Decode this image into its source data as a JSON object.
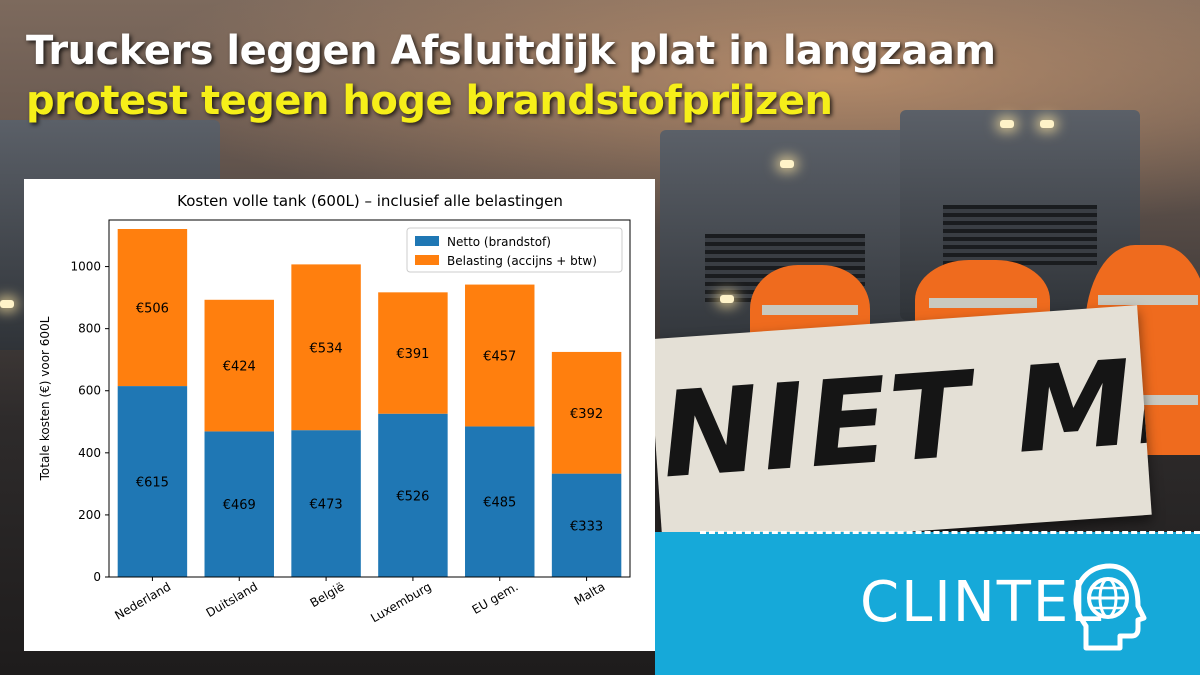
{
  "headline": {
    "line1": "Truckers leggen Afsluitdijk plat in langzaam",
    "line2": "protest tegen hoge brandstofprijzen"
  },
  "banner": {
    "text": "NIET MEER!"
  },
  "brand": {
    "name": "CLINTEL",
    "icon": "globe-head-icon",
    "color": "#16a9d9"
  },
  "chart_data": {
    "type": "bar",
    "stacked": true,
    "title": "Kosten volle tank (600L) – inclusief alle belastingen",
    "xlabel": "",
    "ylabel": "Totale kosten (€) voor 600L",
    "ylim": [
      0,
      1150
    ],
    "yticks": [
      0,
      200,
      400,
      600,
      800,
      1000
    ],
    "categories": [
      "Nederland",
      "Duitsland",
      "België",
      "Luxemburg",
      "EU gem.",
      "Malta"
    ],
    "series": [
      {
        "name": "Netto (brandstof)",
        "color": "#1f77b4",
        "values": [
          615,
          469,
          473,
          526,
          485,
          333
        ],
        "labels": [
          "€615",
          "€469",
          "€473",
          "€526",
          "€485",
          "€333"
        ]
      },
      {
        "name": "Belasting (accijns + btw)",
        "color": "#ff7f0e",
        "values": [
          506,
          424,
          534,
          391,
          457,
          392
        ],
        "labels": [
          "€506",
          "€424",
          "€534",
          "€391",
          "€457",
          "€392"
        ]
      }
    ],
    "legend": "top-right",
    "grid": false
  }
}
